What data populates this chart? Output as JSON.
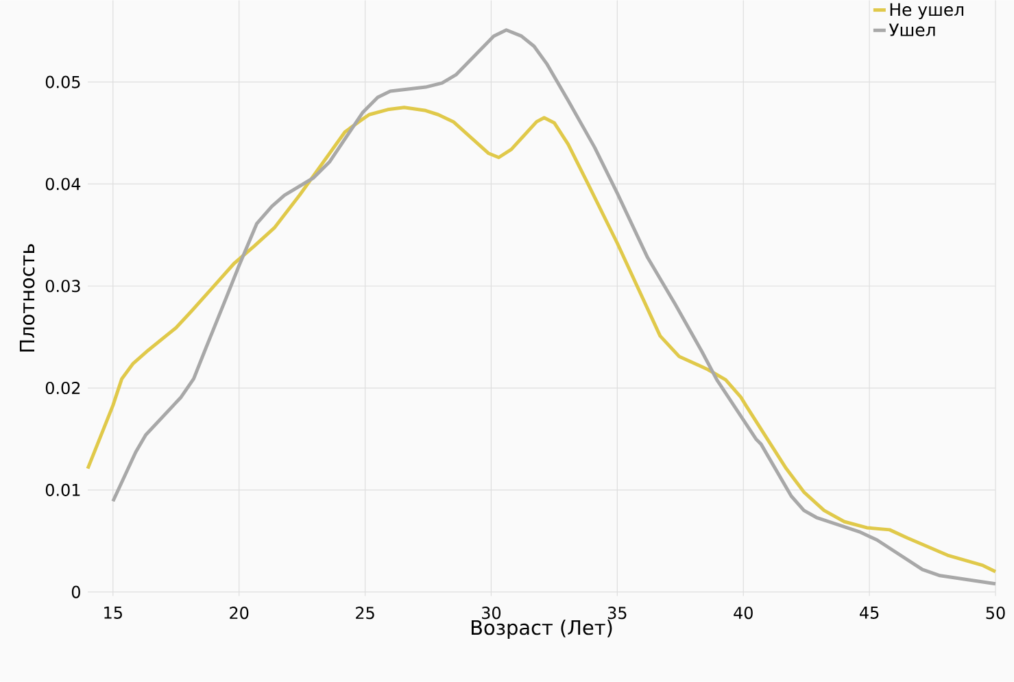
{
  "chart_data": {
    "type": "line",
    "xlabel": "Возраст (Лет)",
    "ylabel": "Плотность",
    "xlim": [
      14,
      50
    ],
    "ylim": [
      -0.0004,
      0.058
    ],
    "xticks": [
      15,
      20,
      25,
      30,
      35,
      40,
      45,
      50
    ],
    "yticks": [
      0,
      0.01,
      0.02,
      0.03,
      0.04,
      0.05
    ],
    "grid": true,
    "legend": "top right",
    "marker": "none",
    "line_style": "solid",
    "series": [
      {
        "name": "Не ушел",
        "color": "#e0c94a",
        "x": [
          14,
          15,
          15.35,
          15.8,
          16.4,
          17.5,
          18.1,
          18.9,
          19.8,
          20.6,
          21.4,
          22.4,
          24.2,
          24.75,
          25.16,
          25.9,
          26.55,
          27.4,
          27.9,
          28.5,
          29.9,
          30.3,
          30.8,
          31.8,
          32.1,
          32.5,
          33.05,
          33.8,
          35.0,
          36.7,
          37.45,
          38.6,
          39.3,
          39.9,
          40.1,
          41.7,
          42.4,
          43.2,
          44.0,
          44.9,
          45.8,
          46.5,
          48.1,
          49.5,
          50
        ],
        "values": [
          0.0121,
          0.0183,
          0.0209,
          0.0224,
          0.0237,
          0.0259,
          0.0275,
          0.0297,
          0.0322,
          0.0339,
          0.0357,
          0.0389,
          0.0451,
          0.0461,
          0.0468,
          0.0473,
          0.0475,
          0.0472,
          0.0468,
          0.0461,
          0.043,
          0.0426,
          0.0434,
          0.0461,
          0.0465,
          0.046,
          0.0439,
          0.0402,
          0.0342,
          0.0251,
          0.0231,
          0.0218,
          0.0208,
          0.0191,
          0.0183,
          0.0121,
          0.0098,
          0.008,
          0.0069,
          0.0063,
          0.0061,
          0.0053,
          0.0036,
          0.0026,
          0.002
        ]
      },
      {
        "name": "Ушел",
        "color": "#a8a8a8",
        "x": [
          15,
          15.9,
          16.3,
          17.7,
          18.2,
          18.65,
          19.5,
          20.0,
          20.7,
          21.3,
          21.8,
          22.95,
          23.6,
          24.9,
          25.5,
          26.0,
          27.4,
          28.05,
          28.6,
          30.1,
          30.6,
          31.2,
          31.7,
          32.2,
          33.05,
          34.1,
          35.0,
          36.2,
          37.3,
          38.35,
          38.95,
          40.5,
          40.7,
          41.9,
          42.4,
          42.9,
          44.6,
          45.3,
          47.1,
          47.8,
          50
        ],
        "values": [
          0.0089,
          0.0137,
          0.0154,
          0.0191,
          0.0209,
          0.0237,
          0.0289,
          0.032,
          0.0361,
          0.0378,
          0.0389,
          0.0406,
          0.0422,
          0.047,
          0.0485,
          0.0491,
          0.0495,
          0.0499,
          0.0507,
          0.0545,
          0.0551,
          0.0545,
          0.0535,
          0.0518,
          0.0482,
          0.0436,
          0.0391,
          0.0328,
          0.0282,
          0.0236,
          0.0208,
          0.015,
          0.0145,
          0.0094,
          0.008,
          0.0073,
          0.0059,
          0.0051,
          0.0022,
          0.0016,
          0.0008
        ]
      }
    ]
  }
}
